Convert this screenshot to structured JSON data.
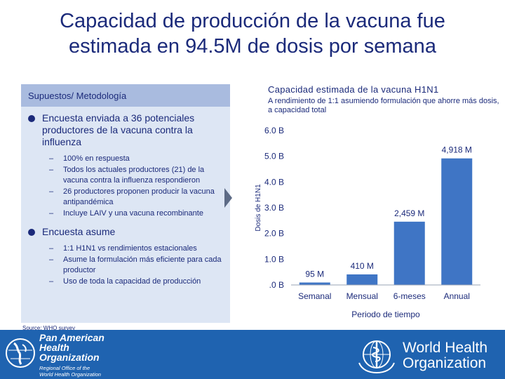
{
  "title_line1": "Capacidad de producción de la vacuna fue",
  "title_line2": "estimada en 94.5M de dosis por semana",
  "left_panel": {
    "header": "Supuestos/ Metodología",
    "bullet1": "Encuesta enviada a 36 potenciales productores de la vacuna contra la influenza",
    "bullet1_subs": [
      "100% en respuesta",
      "Todos los actuales productores (21) de la vacuna contra la influenza respondieron",
      "26 productores proponen producir la vacuna antipandémica",
      "Incluye LAIV y una vacuna recombinante"
    ],
    "bullet2": "Encuesta asume",
    "bullet2_subs": [
      "1:1 H1N1 vs rendimientos estacionales",
      "Asume la formulación más eficiente para cada productor",
      "Uso de toda la capacidad de producción"
    ]
  },
  "chart_data": {
    "type": "bar",
    "title": "Capacidad estimada de la vacuna H1N1",
    "subtitle": "A rendimiento de 1:1 asumiendo formulación que ahorre más dosis, a capacidad total",
    "categories": [
      "Semanal",
      "Mensual",
      "6-meses",
      "Annual"
    ],
    "values": [
      0.095,
      0.41,
      2.459,
      4.918
    ],
    "data_labels": [
      "95 M",
      "410 M",
      "2,459 M",
      "4,918 M"
    ],
    "yticks": [
      ".0 B",
      "1.0 B",
      "2.0 B",
      "3.0 B",
      "4.0 B",
      "5.0 B",
      "6.0 B"
    ],
    "ylim": [
      0,
      6
    ],
    "ylabel": "Dosis de H1N1",
    "xlabel": "Periodo de tiempo",
    "bar_color": "#3f75c5",
    "grid": false
  },
  "source": "Source: WHO survey",
  "footer": {
    "paho_line1": "Pan American",
    "paho_line2": "Health",
    "paho_line3": "Organization",
    "paho_sub1": "Regional Office of the",
    "paho_sub2": "World Health Organization",
    "who_line1": "World Health",
    "who_line2": "Organization",
    "bg_color": "#1f63b0"
  }
}
